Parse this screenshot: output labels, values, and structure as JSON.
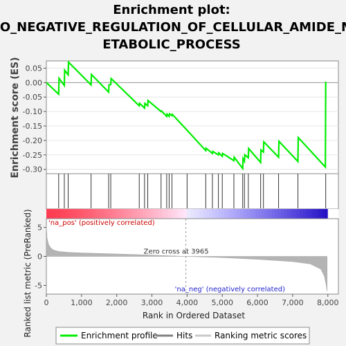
{
  "chart_data": [
    {
      "type": "line",
      "title_lines": [
        "Enrichment plot:",
        "GO_NEGATIVE_REGULATION_OF_CELLULAR_AMIDE_M",
        "ETABOLIC_PROCESS"
      ],
      "ylabel": "Enrichment score (ES)",
      "xlim": [
        0,
        8300
      ],
      "ylim": [
        -0.315,
        0.075
      ],
      "yticks": [
        0.05,
        0.0,
        -0.05,
        -0.1,
        -0.15,
        -0.2,
        -0.25,
        -0.3
      ],
      "ytick_labels": [
        "0.05",
        "0.00",
        "-0.05",
        "-0.10",
        "-0.15",
        "-0.20",
        "-0.25",
        "-0.30"
      ],
      "series": [
        {
          "name": "Enrichment profile",
          "color": "#00ee00",
          "x": [
            0,
            350,
            360,
            510,
            520,
            620,
            630,
            1270,
            1280,
            1770,
            1780,
            1830,
            1840,
            2640,
            2650,
            2790,
            2800,
            2880,
            2890,
            3260,
            3270,
            3420,
            3430,
            3490,
            3500,
            3570,
            3580,
            4000,
            4530,
            4540,
            4720,
            4730,
            4890,
            4900,
            5000,
            5010,
            5330,
            5340,
            5580,
            5590,
            5630,
            5640,
            5740,
            5750,
            6090,
            6100,
            6170,
            6180,
            6600,
            6610,
            7150,
            7160,
            7930,
            7940
          ],
          "y": [
            0.0,
            -0.04,
            0.015,
            -0.01,
            0.043,
            0.027,
            0.071,
            -0.008,
            0.028,
            -0.033,
            -0.008,
            -0.007,
            0.014,
            -0.08,
            -0.072,
            -0.088,
            -0.072,
            -0.08,
            -0.062,
            -0.1,
            -0.098,
            -0.117,
            -0.109,
            -0.117,
            -0.108,
            -0.114,
            -0.11,
            -0.165,
            -0.235,
            -0.227,
            -0.245,
            -0.238,
            -0.25,
            -0.243,
            -0.255,
            -0.245,
            -0.27,
            -0.258,
            -0.297,
            -0.263,
            -0.272,
            -0.25,
            -0.26,
            -0.228,
            -0.276,
            -0.233,
            -0.24,
            -0.205,
            -0.258,
            -0.203,
            -0.273,
            -0.19,
            -0.292,
            0.003
          ]
        }
      ],
      "hits": [
        350,
        510,
        620,
        1270,
        1770,
        1830,
        2640,
        2790,
        2880,
        3260,
        3420,
        3490,
        3570,
        4000,
        4530,
        4720,
        4890,
        5000,
        5330,
        5580,
        5630,
        5740,
        6090,
        6170,
        6600,
        7150,
        7940
      ]
    },
    {
      "type": "area",
      "ylabel": "Ranked list metric (PreRanked)",
      "xlabel": "Rank in Ordered Dataset",
      "xlim": [
        0,
        8300
      ],
      "ylim": [
        -6.5,
        6.5
      ],
      "xticks": [
        0,
        1000,
        2000,
        3000,
        4000,
        5000,
        6000,
        7000,
        8000
      ],
      "xtick_labels": [
        "0",
        "1,000",
        "2,000",
        "3,000",
        "4,000",
        "5,000",
        "6,000",
        "7,000",
        "8,000"
      ],
      "yticks": [
        5,
        0,
        -5
      ],
      "ytick_labels": [
        "5",
        "0",
        "-5"
      ],
      "x": [
        0,
        20,
        60,
        120,
        200,
        350,
        600,
        1000,
        2000,
        3000,
        3965,
        5000,
        6000,
        7000,
        7500,
        7800,
        7900,
        7950,
        7980
      ],
      "y": [
        5.3,
        3.2,
        2.1,
        1.5,
        1.1,
        0.85,
        0.7,
        0.6,
        0.42,
        0.22,
        0.0,
        -0.2,
        -0.5,
        -0.9,
        -1.3,
        -2.2,
        -3.4,
        -4.8,
        -6.0
      ],
      "annotations": {
        "zero_cross": "Zero cross at 3965",
        "pos": "'na_pos' (positively correlated)",
        "neg": "'na_neg' (negatively correlated)"
      }
    }
  ],
  "legend": {
    "items": [
      {
        "label": "Enrichment profile",
        "color": "#00ee00"
      },
      {
        "label": "Hits",
        "color": "#808080"
      },
      {
        "label": "Ranking metric scores",
        "color": "#c8c8c8"
      }
    ]
  }
}
